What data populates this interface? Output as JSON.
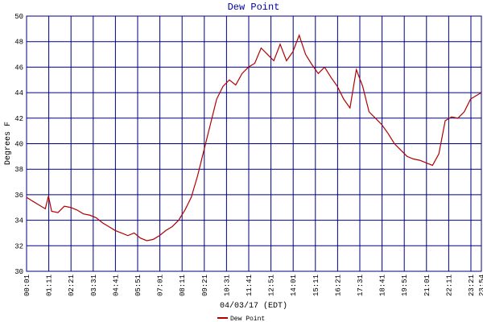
{
  "chart_data": {
    "type": "line",
    "title": "Dew Point",
    "x_label": "04/03/17 (EDT)",
    "y_label": "Degrees F",
    "x": [
      1,
      20,
      40,
      60,
      70,
      80,
      100,
      120,
      140,
      160,
      180,
      200,
      220,
      240,
      260,
      280,
      300,
      320,
      340,
      360,
      380,
      400,
      420,
      440,
      460,
      480,
      500,
      520,
      540,
      560,
      580,
      600,
      620,
      640,
      660,
      680,
      700,
      720,
      740,
      760,
      780,
      800,
      820,
      840,
      860,
      880,
      900,
      920,
      940,
      960,
      980,
      1000,
      1020,
      1040,
      1060,
      1080,
      1100,
      1120,
      1140,
      1160,
      1180,
      1200,
      1220,
      1240,
      1260,
      1280,
      1300,
      1320,
      1340,
      1360,
      1380,
      1400,
      1420,
      1434
    ],
    "series": [
      {
        "name": "Dew Point",
        "color": "#b00000",
        "values": [
          35.8,
          35.5,
          35.2,
          34.9,
          35.9,
          34.7,
          34.6,
          35.1,
          35.0,
          34.8,
          34.5,
          34.4,
          34.2,
          33.8,
          33.5,
          33.2,
          33.0,
          32.8,
          33.0,
          32.6,
          32.4,
          32.5,
          32.8,
          33.2,
          33.5,
          34.0,
          34.8,
          35.8,
          37.5,
          39.5,
          41.5,
          43.5,
          44.5,
          45.0,
          44.6,
          45.5,
          46.0,
          46.3,
          47.5,
          47.0,
          46.5,
          47.8,
          46.5,
          47.2,
          48.5,
          47.0,
          46.2,
          45.5,
          46.0,
          45.2,
          44.5,
          43.5,
          42.8,
          45.8,
          44.5,
          42.5,
          42.0,
          41.5,
          40.8,
          40.0,
          39.5,
          39.0,
          38.8,
          38.7,
          38.5,
          38.3,
          39.2,
          41.8,
          42.1,
          42.0,
          42.5,
          43.5,
          43.8,
          44.0
        ]
      }
    ],
    "xlim": [
      1,
      1434
    ],
    "xticks": [
      {
        "value": 1,
        "label": "00:01"
      },
      {
        "value": 71,
        "label": "01:11"
      },
      {
        "value": 141,
        "label": "02:21"
      },
      {
        "value": 211,
        "label": "03:31"
      },
      {
        "value": 281,
        "label": "04:41"
      },
      {
        "value": 351,
        "label": "05:51"
      },
      {
        "value": 421,
        "label": "07:01"
      },
      {
        "value": 491,
        "label": "08:11"
      },
      {
        "value": 561,
        "label": "09:21"
      },
      {
        "value": 631,
        "label": "10:31"
      },
      {
        "value": 701,
        "label": "11:41"
      },
      {
        "value": 771,
        "label": "12:51"
      },
      {
        "value": 841,
        "label": "14:01"
      },
      {
        "value": 911,
        "label": "15:11"
      },
      {
        "value": 981,
        "label": "16:21"
      },
      {
        "value": 1051,
        "label": "17:31"
      },
      {
        "value": 1121,
        "label": "18:41"
      },
      {
        "value": 1191,
        "label": "19:51"
      },
      {
        "value": 1261,
        "label": "21:01"
      },
      {
        "value": 1331,
        "label": "22:11"
      },
      {
        "value": 1401,
        "label": "23:21"
      },
      {
        "value": 1434,
        "label": "23:54"
      }
    ],
    "ylim": [
      30,
      50
    ],
    "yticks": [
      30,
      32,
      34,
      36,
      38,
      40,
      42,
      44,
      46,
      48,
      50
    ],
    "grid": true
  }
}
